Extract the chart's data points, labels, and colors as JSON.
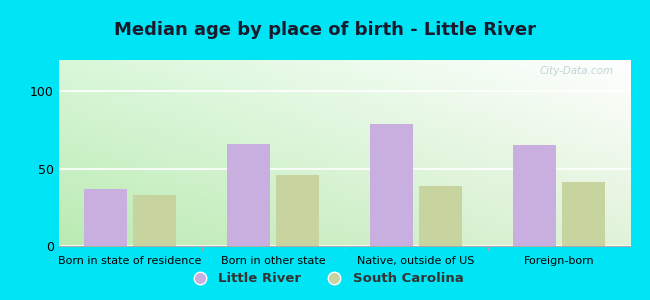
{
  "title": "Median age by place of birth - Little River",
  "categories": [
    "Born in state of residence",
    "Born in other state",
    "Native, outside of US",
    "Foreign-born"
  ],
  "little_river": [
    37,
    66,
    79,
    65
  ],
  "south_carolina": [
    33,
    46,
    39,
    41
  ],
  "bar_color_lr": "#c9aee0",
  "bar_color_sc": "#c8d4a0",
  "background_outer": "#00e5f5",
  "background_plot_top": "#f5faf5",
  "background_plot_bottom": "#d8eecc",
  "ylim": [
    0,
    120
  ],
  "yticks": [
    0,
    50,
    100
  ],
  "legend_labels": [
    "Little River",
    "South Carolina"
  ],
  "title_fontsize": 13,
  "label_fontsize": 8,
  "tick_fontsize": 9,
  "legend_fontsize": 9.5,
  "watermark": "City-Data.com"
}
